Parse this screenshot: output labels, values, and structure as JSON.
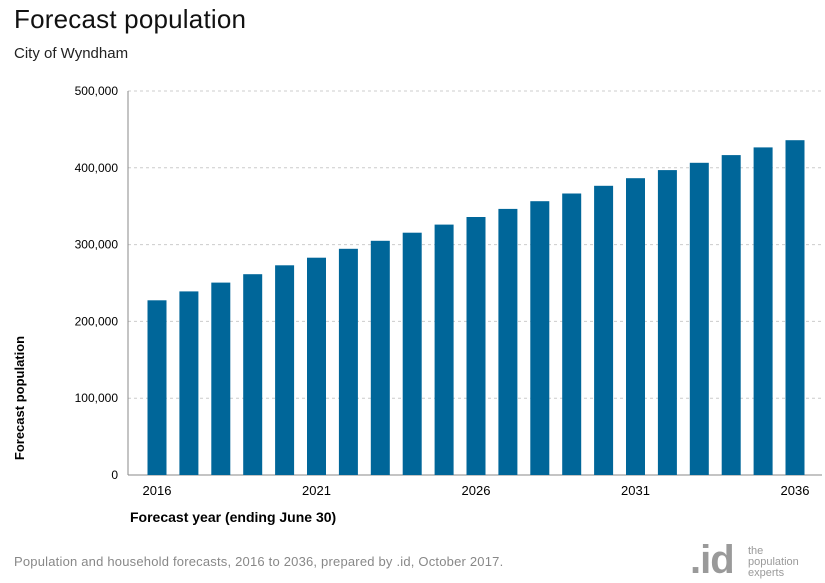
{
  "header": {
    "title": "Forecast population",
    "subtitle": "City of Wyndham"
  },
  "footer": {
    "note": "Population and household forecasts, 2016 to 2036, prepared by .id, October 2017.",
    "logo_mark": ".id",
    "logo_tag": [
      "the",
      "population",
      "experts"
    ]
  },
  "colors": {
    "bar": "#006699",
    "grid": "#cccccc",
    "axis": "#888888"
  },
  "chart_data": {
    "type": "bar",
    "categories": [
      "2016",
      "2017",
      "2018",
      "2019",
      "2020",
      "2021",
      "2022",
      "2023",
      "2024",
      "2025",
      "2026",
      "2027",
      "2028",
      "2029",
      "2030",
      "2031",
      "2032",
      "2033",
      "2034",
      "2035",
      "2036"
    ],
    "values": [
      227500,
      239000,
      250500,
      261500,
      273000,
      283000,
      294500,
      305000,
      315500,
      326000,
      336000,
      346500,
      356500,
      366500,
      376500,
      386500,
      397000,
      406500,
      416500,
      426500,
      436000
    ],
    "xlabel": "Forecast year (ending June 30)",
    "ylabel": "Forecast population",
    "ylim": [
      0,
      500000
    ],
    "yticks": [
      0,
      100000,
      200000,
      300000,
      400000,
      500000
    ],
    "ytick_labels": [
      "0",
      "100,000",
      "200,000",
      "300,000",
      "400,000",
      "500,000"
    ],
    "xtick_labels": [
      "2016",
      "2021",
      "2026",
      "2031",
      "2036"
    ],
    "grid": true
  }
}
